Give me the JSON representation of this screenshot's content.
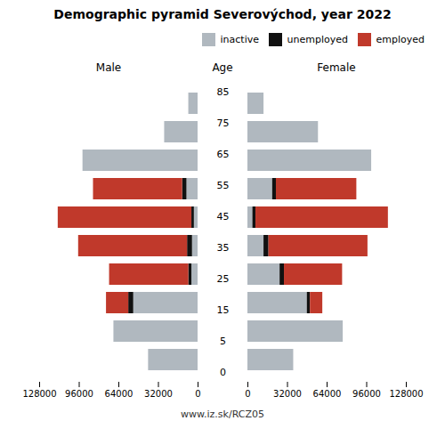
{
  "chart_data": {
    "type": "bar",
    "orientation": "horizontal",
    "stacked": true,
    "title": "Demographic pyramid Severovýchod, year 2022",
    "ylabel": "Age",
    "annotations": [
      "www.iz.sk/RCZ05"
    ],
    "legend": "upper right",
    "categories": [
      "0",
      "5",
      "15",
      "25",
      "35",
      "45",
      "55",
      "65",
      "75",
      "85"
    ],
    "panels": [
      {
        "title": "Male",
        "xlim": [
          128000,
          0
        ],
        "xticks": [
          128000,
          96000,
          64000,
          32000,
          0
        ],
        "series": [
          {
            "name": "inactive",
            "color": "#b0b8bf",
            "values": [
              40000,
              68000,
              52000,
              5000,
              4500,
              3000,
              9000,
              93000,
              27000,
              7500
            ]
          },
          {
            "name": "unemployed",
            "color": "#111111",
            "values": [
              0,
              0,
              4000,
              2500,
              4000,
              2000,
              3500,
              0,
              0,
              0
            ]
          },
          {
            "name": "employed",
            "color": "#c0392b",
            "values": [
              0,
              0,
              18000,
              64000,
              88000,
              108000,
              72000,
              0,
              0,
              0
            ]
          }
        ]
      },
      {
        "title": "Female",
        "xlim": [
          0,
          128000
        ],
        "xticks": [
          0,
          32000,
          64000,
          96000,
          128000
        ],
        "series": [
          {
            "name": "inactive",
            "color": "#b0b8bf",
            "values": [
              37000,
              77000,
              48000,
              26000,
              13000,
              4000,
              20000,
              100000,
              57000,
              13000
            ]
          },
          {
            "name": "unemployed",
            "color": "#111111",
            "values": [
              0,
              0,
              2500,
              3500,
              4000,
              2500,
              3000,
              0,
              0,
              0
            ]
          },
          {
            "name": "employed",
            "color": "#c0392b",
            "values": [
              0,
              0,
              10000,
              47000,
              80000,
              107000,
              65000,
              0,
              0,
              0
            ]
          }
        ]
      }
    ]
  }
}
